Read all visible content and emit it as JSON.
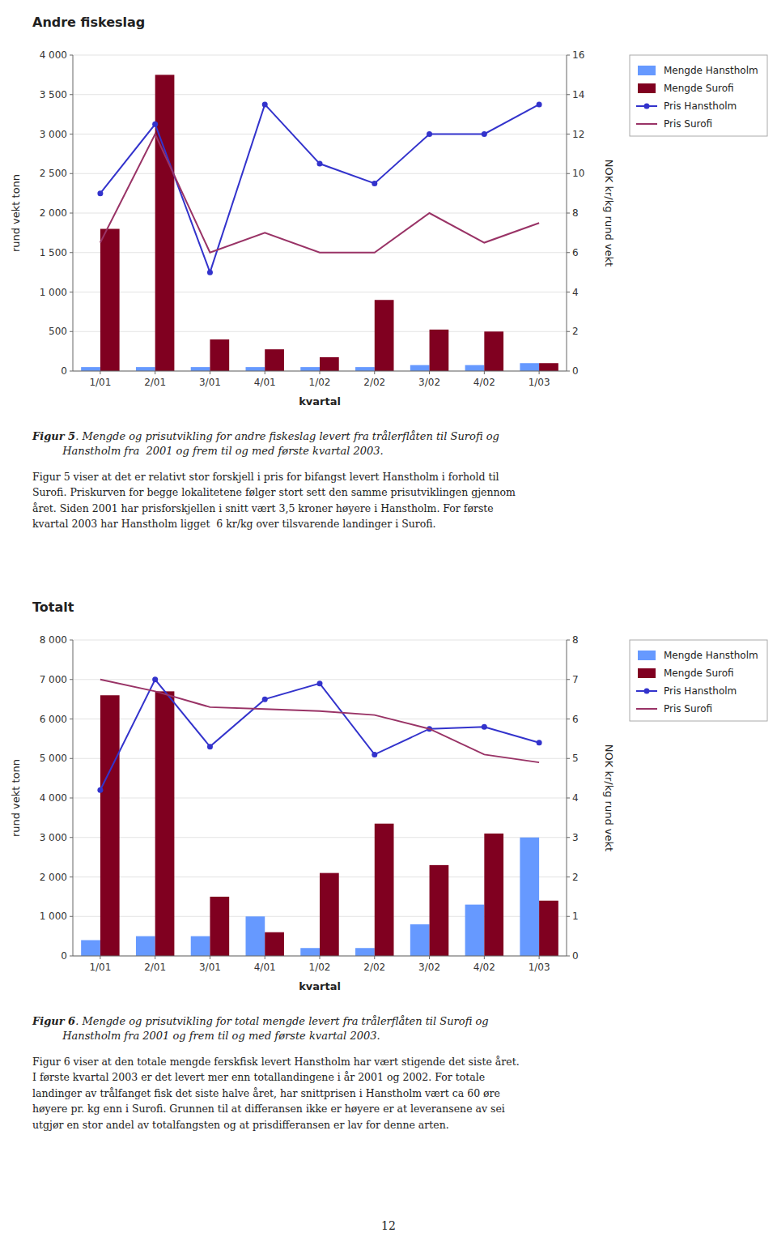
{
  "chart_data": [
    {
      "type": "bar",
      "title": "Andre fiskeslag",
      "categories": [
        "1/01",
        "2/01",
        "3/01",
        "4/01",
        "1/02",
        "2/02",
        "3/02",
        "4/02",
        "1/03"
      ],
      "series": [
        {
          "name": "Mengde Hanstholm",
          "type": "bar",
          "color": "#6699FF",
          "values": [
            50,
            50,
            50,
            50,
            50,
            50,
            75,
            75,
            100
          ]
        },
        {
          "name": "Mengde Surofi",
          "type": "bar",
          "color": "#800020",
          "values": [
            1800,
            3750,
            400,
            275,
            175,
            900,
            525,
            500,
            100
          ]
        },
        {
          "name": "Pris Hanstholm",
          "type": "line",
          "axis": "y2",
          "color": "#3333CC",
          "marker": "circle",
          "values": [
            9.0,
            12.5,
            5.0,
            13.5,
            10.5,
            9.5,
            12.0,
            12.0,
            13.5
          ]
        },
        {
          "name": "Pris Surofi",
          "type": "line",
          "axis": "y2",
          "color": "#993366",
          "values": [
            6.5,
            12.0,
            6.0,
            7.0,
            6.0,
            6.0,
            8.0,
            6.5,
            7.5
          ]
        }
      ],
      "xlabel": "kvartal",
      "ylabel": "rund vekt tonn",
      "y2label": "NOK kr/kg rund vekt",
      "ylim": [
        0,
        4000
      ],
      "yticks": [
        0,
        500,
        {
          "value": 1000,
          "label": "1 000"
        },
        {
          "value": 1500,
          "label": "1 500"
        },
        {
          "value": 2000,
          "label": "2 000"
        },
        {
          "value": 2500,
          "label": "2 500"
        },
        {
          "value": 3000,
          "label": "3 000"
        },
        {
          "value": 3500,
          "label": "3 500"
        },
        {
          "value": 4000,
          "label": "4 000"
        }
      ],
      "y2lim": [
        0,
        16
      ],
      "y2ticks": [
        0,
        2,
        4,
        6,
        8,
        10,
        12,
        14,
        16
      ],
      "grid": true,
      "legend": "right",
      "annotations": [
        "Figur 5",
        ". Mengde og prisutvikling for andre fiskeslag levert fra trålerflåten til Surofi og\n         Hanstholm fra  2001 og frem til og med første kvartal 2003.",
        "Figur 5 viser at det er relativt stor forskjell i pris for bifangst levert Hanstholm i forhold til\nSurofi. Priskurven for begge lokalitetene følger stort sett den samme prisutviklingen gjennom\nåret. Siden 2001 har prisforskjellen i snitt vært 3,5 kroner høyere i Hanstholm. For første\nkvartal 2003 har Hanstholm ligget  6 kr/kg over tilsvarende landinger i Surofi."
      ]
    },
    {
      "type": "bar",
      "title": "Totalt",
      "categories": [
        "1/01",
        "2/01",
        "3/01",
        "4/01",
        "1/02",
        "2/02",
        "3/02",
        "4/02",
        "1/03"
      ],
      "series": [
        {
          "name": "Mengde Hanstholm",
          "type": "bar",
          "color": "#6699FF",
          "values": [
            400,
            500,
            500,
            1000,
            200,
            200,
            800,
            1300,
            3000
          ]
        },
        {
          "name": "Mengde Surofi",
          "type": "bar",
          "color": "#800020",
          "values": [
            6600,
            6700,
            1500,
            600,
            2100,
            3350,
            2300,
            3100,
            1400
          ]
        },
        {
          "name": "Pris Hanstholm",
          "type": "line",
          "axis": "y2",
          "color": "#3333CC",
          "marker": "circle",
          "values": [
            4.2,
            7.0,
            5.3,
            6.5,
            6.9,
            5.1,
            5.75,
            5.8,
            5.4
          ]
        },
        {
          "name": "Pris Surofi",
          "type": "line",
          "axis": "y2",
          "color": "#993366",
          "values": [
            7.0,
            6.7,
            6.3,
            6.25,
            6.2,
            6.1,
            5.75,
            5.1,
            4.9
          ]
        }
      ],
      "xlabel": "kvartal",
      "ylabel": "rund vekt tonn",
      "y2label": "NOK kr/kg rund vekt",
      "ylim": [
        0,
        8000
      ],
      "yticks": [
        0,
        {
          "value": 1000,
          "label": "1 000"
        },
        {
          "value": 2000,
          "label": "2 000"
        },
        {
          "value": 3000,
          "label": "3 000"
        },
        {
          "value": 4000,
          "label": "4 000"
        },
        {
          "value": 5000,
          "label": "5 000"
        },
        {
          "value": 6000,
          "label": "6 000"
        },
        {
          "value": 7000,
          "label": "7 000"
        },
        {
          "value": 8000,
          "label": "8 000"
        }
      ],
      "y2lim": [
        0,
        8
      ],
      "y2ticks": [
        0,
        1,
        2,
        3,
        4,
        5,
        6,
        7,
        8
      ],
      "grid": true,
      "legend": "right",
      "annotations": [
        "Figur 6",
        ". Mengde og prisutvikling for total mengde levert fra trålerflåten til Surofi og\n         Hanstholm fra 2001 og frem til og med første kvartal 2003.",
        "Figur 6 viser at den totale mengde ferskfisk levert Hanstholm har vært stigende det siste året.\nI første kvartal 2003 er det levert mer enn totallandingene i år 2001 og 2002. For totale\nlandinger av trålfanget fisk det siste halve året, har snittprisen i Hanstholm vært ca 60 øre\nhøyere pr. kg enn i Surofi. Grunnen til at differansen ikke er høyere er at leveransene av sei\nutgjør en stor andel av totalfangsten og at prisdifferansen er lav for denne arten.",
        "12"
      ]
    }
  ]
}
